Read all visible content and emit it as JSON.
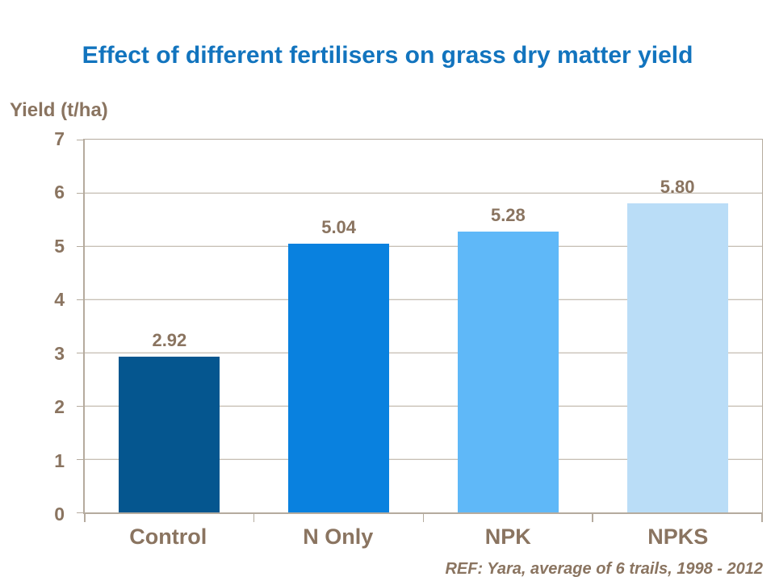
{
  "slide": {
    "title": "Effect of different fertilisers on grass dry matter yield",
    "y_axis_title": "Yield (t/ha)",
    "footer_ref": "REF: Yara, average of 6 trails, 1998 - 2012"
  },
  "colors": {
    "title_text": "#1274BE",
    "label_text": "#8A7460",
    "axis_line": "#B5AB9E",
    "background": "#FFFFFF"
  },
  "chart_data": {
    "type": "bar",
    "title": "Effect of different fertilisers on grass dry matter yield",
    "xlabel": "",
    "ylabel": "Yield (t/ha)",
    "categories": [
      "Control",
      "N Only",
      "NPK",
      "NPKS"
    ],
    "values": [
      2.92,
      5.04,
      5.28,
      5.8
    ],
    "value_labels": [
      "2.92",
      "5.04",
      "5.28",
      "5.80"
    ],
    "bar_colors": [
      "#05568F",
      "#0981DF",
      "#5FB8F8",
      "#BADDF7"
    ],
    "ylim": [
      0,
      7
    ],
    "yticks": [
      0,
      1,
      2,
      3,
      4,
      5,
      6,
      7
    ],
    "grid": "horizontal gridlines at every integer y value",
    "legend_position": "none",
    "annotation": "REF: Yara, average of 6 trails, 1998 - 2012"
  }
}
